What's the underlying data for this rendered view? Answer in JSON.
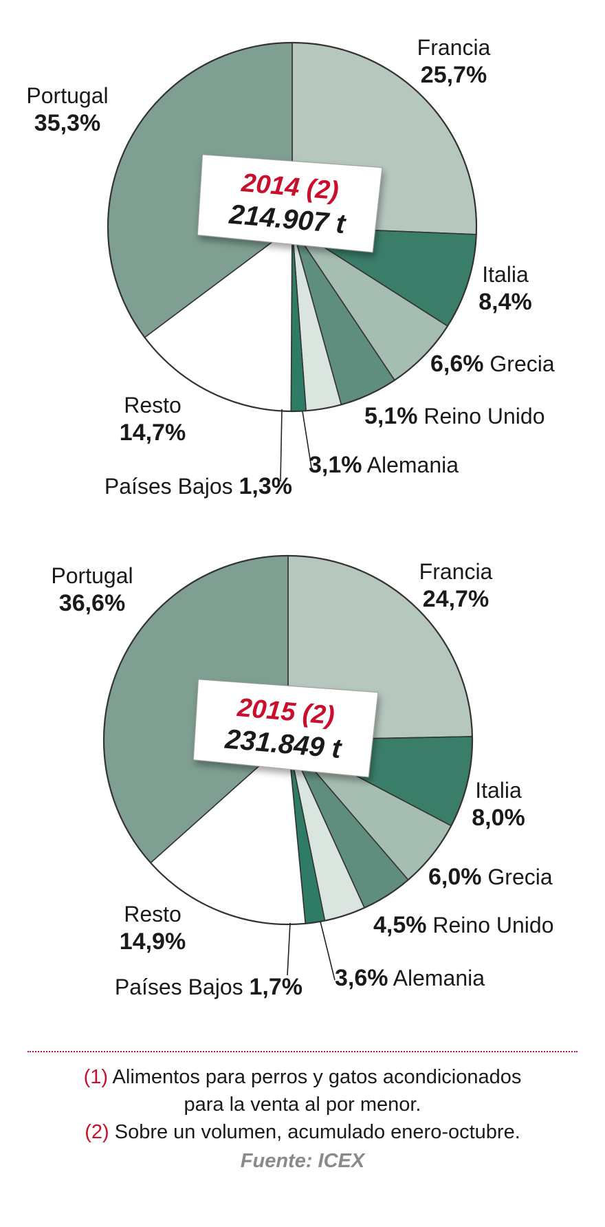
{
  "chart_data": [
    {
      "type": "pie",
      "year_label": "2014 (2)",
      "total_label": "214.907 t",
      "slices": [
        {
          "name": "Francia",
          "value": 25.7,
          "label": "25,7%",
          "color": "#b6c7be"
        },
        {
          "name": "Italia",
          "value": 8.4,
          "label": "8,4%",
          "color": "#3a7d69"
        },
        {
          "name": "Grecia",
          "value": 6.6,
          "label": "6,6%",
          "color": "#a6bdb1"
        },
        {
          "name": "Reino Unido",
          "value": 5.1,
          "label": "5,1%",
          "color": "#5f8e7f"
        },
        {
          "name": "Alemania",
          "value": 3.1,
          "label": "3,1%",
          "color": "#dbe5df"
        },
        {
          "name": "Países Bajos",
          "value": 1.3,
          "label": "1,3%",
          "color": "#2f7c66"
        },
        {
          "name": "Resto",
          "value": 14.7,
          "label": "14,7%",
          "color": "#ffffff"
        },
        {
          "name": "Portugal",
          "value": 35.3,
          "label": "35,3%",
          "color": "#7e9f91"
        }
      ]
    },
    {
      "type": "pie",
      "year_label": "2015 (2)",
      "total_label": "231.849 t",
      "slices": [
        {
          "name": "Francia",
          "value": 24.7,
          "label": "24,7%",
          "color": "#b6c7be"
        },
        {
          "name": "Italia",
          "value": 8.0,
          "label": "8,0%",
          "color": "#3a7d69"
        },
        {
          "name": "Grecia",
          "value": 6.0,
          "label": "6,0%",
          "color": "#a6bdb1"
        },
        {
          "name": "Reino Unido",
          "value": 4.5,
          "label": "4,5%",
          "color": "#5f8e7f"
        },
        {
          "name": "Alemania",
          "value": 3.6,
          "label": "3,6%",
          "color": "#dbe5df"
        },
        {
          "name": "Países Bajos",
          "value": 1.7,
          "label": "1,7%",
          "color": "#2f7c66"
        },
        {
          "name": "Resto",
          "value": 14.9,
          "label": "14,9%",
          "color": "#ffffff"
        },
        {
          "name": "Portugal",
          "value": 36.6,
          "label": "36,6%",
          "color": "#7e9f91"
        }
      ]
    }
  ],
  "notes": {
    "note1_num": "(1)",
    "note1_text_a": "Alimentos para perros y gatos acondicionados",
    "note1_text_b": "para la venta al por menor.",
    "note2_num": "(2)",
    "note2_text": "Sobre un volumen, acumulado enero-octubre.",
    "source": "Fuente: ICEX"
  },
  "colors": {
    "accent_red": "#c8102e",
    "stroke": "#333333",
    "source_gray": "#8a8a8a"
  }
}
